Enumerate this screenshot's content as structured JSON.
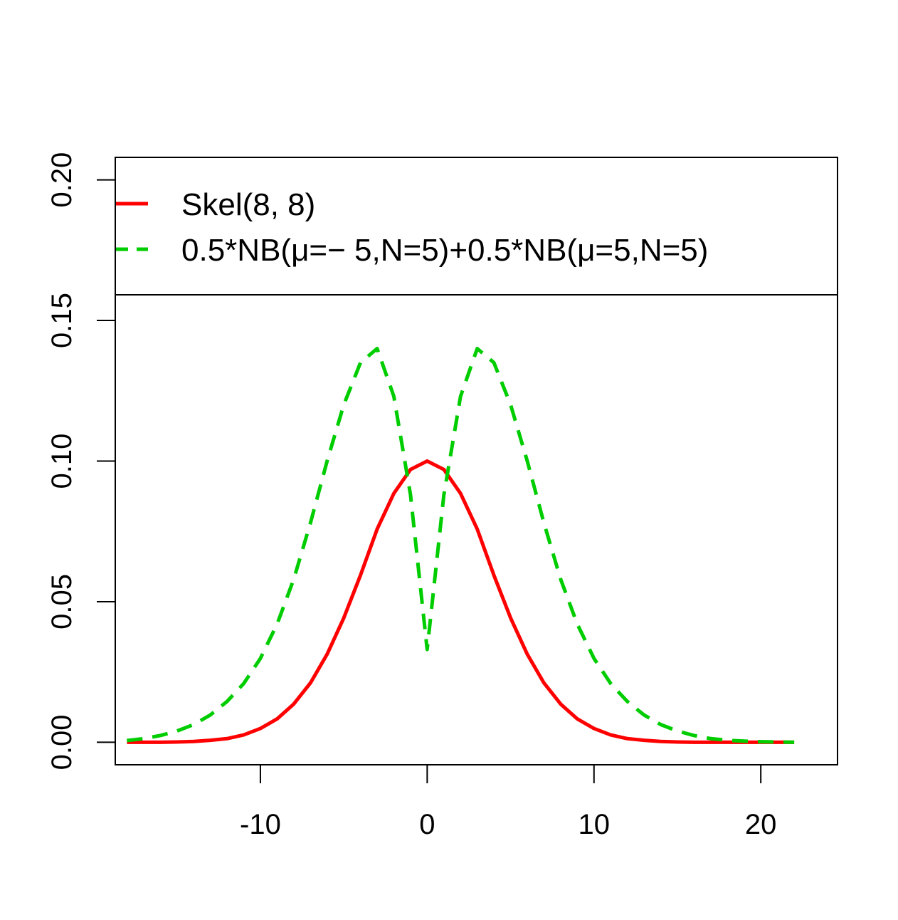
{
  "chart_data": {
    "type": "line",
    "title": "",
    "xlabel": "",
    "ylabel": "",
    "xlim": [
      -18.7,
      24.6
    ],
    "ylim": [
      -0.008,
      0.208
    ],
    "x_ticks": [
      -10,
      0,
      10,
      20
    ],
    "x_tick_labels": [
      "-10",
      "0",
      "10",
      "20"
    ],
    "y_ticks": [
      0.0,
      0.05,
      0.1,
      0.15,
      0.2
    ],
    "y_tick_labels": [
      "0.00",
      "0.05",
      "0.10",
      "0.15",
      "0.20"
    ],
    "grid": false,
    "legend_position": "top",
    "legend": {
      "entries": [
        {
          "text": "Skel(8, 8)",
          "color": "#ff0000",
          "style": "solid"
        },
        {
          "text": "0.5*NB(μ=− 5,N=5)+0.5*NB(μ=5,N=5)",
          "color": "#00cd00",
          "style": "dashed"
        }
      ]
    },
    "x": [
      -18,
      -17,
      -16,
      -15,
      -14,
      -13,
      -12,
      -11,
      -10,
      -9,
      -8,
      -7,
      -6,
      -5,
      -4,
      -3,
      -2,
      -1,
      0,
      1,
      2,
      3,
      4,
      5,
      6,
      7,
      8,
      9,
      10,
      11,
      12,
      13,
      14,
      15,
      16,
      17,
      18,
      19,
      20,
      21,
      22
    ],
    "series": [
      {
        "name": "Skel(8, 8)",
        "color": "#ff0000",
        "style": "solid",
        "values": [
          0.0,
          0.0,
          0.0,
          0.0001,
          0.0003,
          0.0007,
          0.0013,
          0.0026,
          0.0049,
          0.0083,
          0.0136,
          0.0211,
          0.0313,
          0.0442,
          0.0594,
          0.0758,
          0.0885,
          0.097,
          0.1,
          0.097,
          0.0885,
          0.0758,
          0.0594,
          0.0442,
          0.0313,
          0.0211,
          0.0136,
          0.0083,
          0.0049,
          0.0026,
          0.0013,
          0.0007,
          0.0003,
          0.0001,
          0.0,
          0.0,
          0.0,
          0.0,
          0.0,
          0.0,
          0.0
        ]
      },
      {
        "name": "0.5*NB(μ=− 5,N=5)+0.5*NB(μ=5,N=5)",
        "color": "#00cd00",
        "style": "dashed",
        "values": [
          0.0006,
          0.0013,
          0.0024,
          0.004,
          0.0063,
          0.0097,
          0.0145,
          0.0209,
          0.0298,
          0.042,
          0.058,
          0.078,
          0.1,
          0.12,
          0.135,
          0.14,
          0.123,
          0.088,
          0.033,
          0.088,
          0.123,
          0.14,
          0.135,
          0.12,
          0.1,
          0.078,
          0.058,
          0.042,
          0.0298,
          0.0209,
          0.0145,
          0.0097,
          0.0063,
          0.004,
          0.0024,
          0.0013,
          0.0007,
          0.0004,
          0.0002,
          0.0001,
          0.0
        ]
      }
    ]
  }
}
